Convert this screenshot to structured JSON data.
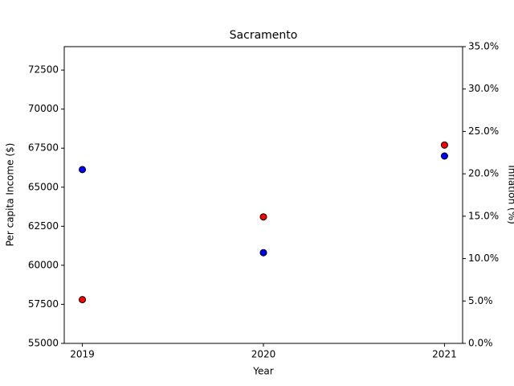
{
  "chart_data": {
    "type": "scatter",
    "title": "Sacramento",
    "x_label": "Year",
    "y_label": "Per capita Income ($)",
    "y_label_color": "#ff0000",
    "y2_label": "Inflation (%)",
    "y2_label_color": "#0000ff",
    "x": [
      2019,
      2020,
      2021
    ],
    "xlim": [
      2018.9,
      2021.1
    ],
    "xticks": [
      2019,
      2020,
      2021
    ],
    "ylim": [
      55000,
      74000
    ],
    "yticks": [
      55000,
      57500,
      60000,
      62500,
      65000,
      67500,
      70000,
      72500
    ],
    "y2lim": [
      0,
      35
    ],
    "y2ticks": [
      {
        "value": 0,
        "label": "0.0%"
      },
      {
        "value": 5,
        "label": "5.0%"
      },
      {
        "value": 10,
        "label": "10.0%"
      },
      {
        "value": 15,
        "label": "15.0%"
      },
      {
        "value": 20,
        "label": "20.0%"
      },
      {
        "value": 25,
        "label": "25.0%"
      },
      {
        "value": 30,
        "label": "30.0%"
      },
      {
        "value": 35,
        "label": "35.0%"
      }
    ],
    "series": [
      {
        "color": "#ff0000",
        "values": [
          57800,
          63100,
          67700
        ]
      },
      {
        "color": "#0000ff",
        "axis": "y2",
        "values": [
          20.5,
          10.7,
          22.1
        ]
      }
    ]
  }
}
